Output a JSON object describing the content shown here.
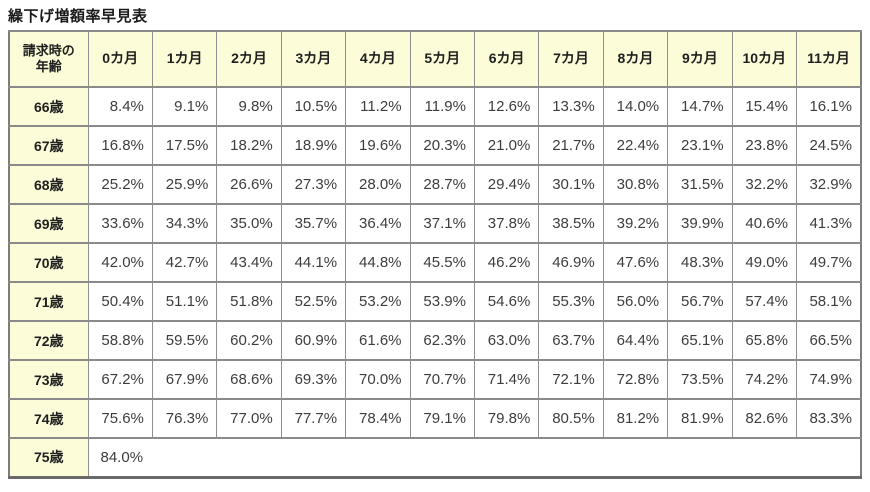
{
  "title": "繰下げ増額率早見表",
  "colors": {
    "header_bg": "#fcfcd8",
    "border": "#8f8f8f",
    "outer_border": "#7d7d7d",
    "value_text": "#3d3d3d",
    "label_text": "#1f1f1f"
  },
  "table": {
    "corner_header_lines": [
      "請求時の",
      "年齢"
    ],
    "month_headers": [
      "0カ月",
      "1カ月",
      "2カ月",
      "3カ月",
      "4カ月",
      "5カ月",
      "6カ月",
      "7カ月",
      "8カ月",
      "9カ月",
      "10カ月",
      "11カ月"
    ],
    "rows": [
      {
        "age": "66歳",
        "values": [
          "8.4%",
          "9.1%",
          "9.8%",
          "10.5%",
          "11.2%",
          "11.9%",
          "12.6%",
          "13.3%",
          "14.0%",
          "14.7%",
          "15.4%",
          "16.1%"
        ]
      },
      {
        "age": "67歳",
        "values": [
          "16.8%",
          "17.5%",
          "18.2%",
          "18.9%",
          "19.6%",
          "20.3%",
          "21.0%",
          "21.7%",
          "22.4%",
          "23.1%",
          "23.8%",
          "24.5%"
        ]
      },
      {
        "age": "68歳",
        "values": [
          "25.2%",
          "25.9%",
          "26.6%",
          "27.3%",
          "28.0%",
          "28.7%",
          "29.4%",
          "30.1%",
          "30.8%",
          "31.5%",
          "32.2%",
          "32.9%"
        ]
      },
      {
        "age": "69歳",
        "values": [
          "33.6%",
          "34.3%",
          "35.0%",
          "35.7%",
          "36.4%",
          "37.1%",
          "37.8%",
          "38.5%",
          "39.2%",
          "39.9%",
          "40.6%",
          "41.3%"
        ]
      },
      {
        "age": "70歳",
        "values": [
          "42.0%",
          "42.7%",
          "43.4%",
          "44.1%",
          "44.8%",
          "45.5%",
          "46.2%",
          "46.9%",
          "47.6%",
          "48.3%",
          "49.0%",
          "49.7%"
        ]
      },
      {
        "age": "71歳",
        "values": [
          "50.4%",
          "51.1%",
          "51.8%",
          "52.5%",
          "53.2%",
          "53.9%",
          "54.6%",
          "55.3%",
          "56.0%",
          "56.7%",
          "57.4%",
          "58.1%"
        ]
      },
      {
        "age": "72歳",
        "values": [
          "58.8%",
          "59.5%",
          "60.2%",
          "60.9%",
          "61.6%",
          "62.3%",
          "63.0%",
          "63.7%",
          "64.4%",
          "65.1%",
          "65.8%",
          "66.5%"
        ]
      },
      {
        "age": "73歳",
        "values": [
          "67.2%",
          "67.9%",
          "68.6%",
          "69.3%",
          "70.0%",
          "70.7%",
          "71.4%",
          "72.1%",
          "72.8%",
          "73.5%",
          "74.2%",
          "74.9%"
        ]
      },
      {
        "age": "74歳",
        "values": [
          "75.6%",
          "76.3%",
          "77.0%",
          "77.7%",
          "78.4%",
          "79.1%",
          "79.8%",
          "80.5%",
          "81.2%",
          "81.9%",
          "82.6%",
          "83.3%"
        ]
      },
      {
        "age": "75歳",
        "values": [
          "84.0%"
        ],
        "merged": true
      }
    ]
  }
}
